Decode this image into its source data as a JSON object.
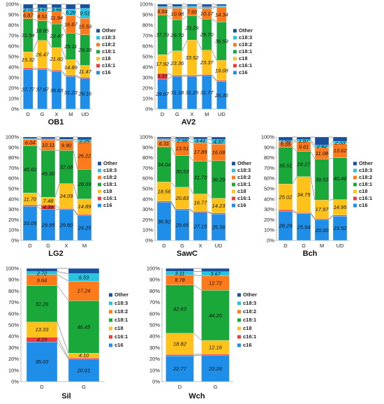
{
  "series_names": [
    "c16",
    "c16:1",
    "c18",
    "c18:1",
    "c18:2",
    "c18:3",
    "Other"
  ],
  "series_colors": [
    "#1f8ee8",
    "#ee3b3b",
    "#ffc21a",
    "#1aa83a",
    "#ff7a1a",
    "#27c3df",
    "#1a4f9e"
  ],
  "chart_data": [
    {
      "type": "bar",
      "stacked": true,
      "title": "OB1",
      "categories": [
        "D",
        "G",
        "X",
        "M",
        "UD"
      ],
      "ylim": [
        0,
        100
      ],
      "yticks": [
        "0%",
        "10%",
        "20%",
        "30%",
        "40%",
        "50%",
        "60%",
        "70%",
        "80%",
        "90%",
        "100%"
      ],
      "legend": "right",
      "series": [
        {
          "name": "c16",
          "values": [
            37.77,
            37.67,
            35.63,
            31.23,
            29.16
          ]
        },
        {
          "name": "c16:1",
          "values": [
            1.5,
            1.3,
            1.4,
            1.0,
            1.0
          ]
        },
        {
          "name": "c18",
          "values": [
            15.32,
            26.47,
            21.6,
            14.89,
            11.47
          ]
        },
        {
          "name": "c18:1",
          "values": [
            31.54,
            18.85,
            22.47,
            25.11,
            29.28
          ]
        },
        {
          "name": "c18:2",
          "values": [
            6.87,
            8.51,
            11.94,
            16.87,
            15.59
          ]
        },
        {
          "name": "c18:3",
          "values": [
            2.7,
            3.57,
            3.56,
            6.2,
            9.51
          ]
        },
        {
          "name": "Other",
          "values": [
            4.3,
            3.63,
            3.4,
            4.7,
            3.99
          ]
        }
      ],
      "labels": [
        {
          "c16": "37.77",
          "c18": "15.32",
          "c18:1": "31.54",
          "c18:2": "6.87",
          "c18:3": "2.70"
        },
        {
          "c16": "37.67",
          "c18": "26.47",
          "c18:1": "18.85",
          "c18:2": "8.51",
          "c18:3": "3.57"
        },
        {
          "c16": "35.63",
          "c18": "21.60",
          "c18:1": "22.47",
          "c18:2": "11.94",
          "c18:3": "3.56"
        },
        {
          "c16": "31.23",
          "c18": "14.89",
          "c18:1": "25.11",
          "c18:2": "16.87",
          "c18:3": "6.20"
        },
        {
          "c16": "29.16",
          "c18": "11.47",
          "c18:1": "29.28",
          "c18:2": "15.59",
          "c18:3": "9.51"
        }
      ]
    },
    {
      "type": "bar",
      "stacked": true,
      "title": "AV2",
      "categories": [
        "D",
        "G",
        "X",
        "M",
        "UD"
      ],
      "ylim": [
        0,
        100
      ],
      "yticks": [
        "0%",
        "10%",
        "20%",
        "30%",
        "40%",
        "50%",
        "60%",
        "70%",
        "80%",
        "90%",
        "100%"
      ],
      "legend": "right",
      "series": [
        {
          "name": "c16",
          "values": [
            28.67,
            31.18,
            31.25,
            31.77,
            26.36
          ]
        },
        {
          "name": "c16:1",
          "values": [
            5.33,
            1.0,
            1.0,
            1.0,
            1.0
          ]
        },
        {
          "name": "c18",
          "values": [
            17.92,
            23.36,
            33.52,
            23.37,
            19.08
          ]
        },
        {
          "name": "c18:1",
          "values": [
            37.79,
            29.7,
            23.29,
            29.7,
            36.59
          ]
        },
        {
          "name": "c18:2",
          "values": [
            6.54,
            10.98,
            7.6,
            10.17,
            14.34
          ]
        },
        {
          "name": "c18:3",
          "values": [
            1.5,
            1.5,
            1.5,
            1.5,
            1.0
          ]
        },
        {
          "name": "Other",
          "values": [
            2.25,
            2.28,
            1.84,
            2.49,
            1.63
          ]
        }
      ],
      "labels": [
        {
          "c16": "28.67",
          "c16:1": "5.33",
          "c18": "17.92",
          "c18:1": "37.79",
          "c18:2": "6.54"
        },
        {
          "c16": "31.18",
          "c18": "23.36",
          "c18:1": "29.70",
          "c18:2": "10.98"
        },
        {
          "c16": "31.25",
          "c18": "33.52",
          "c18:1": "23.29",
          "c18:2": "7.60"
        },
        {
          "c16": "31.77",
          "c18": "23.37",
          "c18:1": "29.70",
          "c18:2": "10.17"
        },
        {
          "c16": "26.36",
          "c18": "19.08",
          "c18:1": "36.59",
          "c18:2": "14.34"
        }
      ]
    },
    {
      "type": "bar",
      "stacked": true,
      "title": "LG2",
      "categories": [
        "D",
        "G",
        "X",
        "M"
      ],
      "ylim": [
        0,
        100
      ],
      "yticks": [
        "0%",
        "10%",
        "20%",
        "30%",
        "40%",
        "50%",
        "60%",
        "70%",
        "80%",
        "90%",
        "100%"
      ],
      "legend": "right",
      "series": [
        {
          "name": "c16",
          "values": [
            33.05,
            29.95,
            29.8,
            24.25
          ]
        },
        {
          "name": "c16:1",
          "values": [
            1.2,
            4.39,
            1.0,
            1.0
          ]
        },
        {
          "name": "c18",
          "values": [
            11.7,
            7.48,
            24.09,
            14.89
          ]
        },
        {
          "name": "c18:1",
          "values": [
            45.62,
            45.3,
            32.08,
            28.69
          ]
        },
        {
          "name": "c18:2",
          "values": [
            6.04,
            10.11,
            9.9,
            26.22
          ]
        },
        {
          "name": "c18:3",
          "values": [
            0.8,
            0.9,
            0.9,
            2.25
          ]
        },
        {
          "name": "Other",
          "values": [
            1.59,
            1.87,
            2.23,
            2.7
          ]
        }
      ],
      "labels": [
        {
          "c16": "33.05",
          "c18": "11.70",
          "c18:1": "45.62",
          "c18:2": "6.04"
        },
        {
          "c16": "29.95",
          "c16:1": "4.39",
          "c18": "7.48",
          "c18:1": "45.30",
          "c18:2": "10.11"
        },
        {
          "c16": "29.80",
          "c18": "24.09",
          "c18:1": "32.08",
          "c18:2": "9.90"
        },
        {
          "c16": "24.25",
          "c18": "14.89",
          "c18:1": "28.69",
          "c18:2": "26.22",
          "c18:3": "2.25"
        }
      ]
    },
    {
      "type": "bar",
      "stacked": true,
      "title": "SawC",
      "categories": [
        "D",
        "G",
        "X",
        "UD"
      ],
      "ylim": [
        0,
        100
      ],
      "yticks": [
        "0%",
        "10%",
        "20%",
        "30%",
        "40%",
        "50%",
        "60%",
        "70%",
        "80%",
        "90%",
        "100%"
      ],
      "legend": "right",
      "series": [
        {
          "name": "c16",
          "values": [
            36.92,
            29.65,
            27.15,
            25.56
          ]
        },
        {
          "name": "c16:1",
          "values": [
            1.0,
            1.0,
            1.0,
            1.0
          ]
        },
        {
          "name": "c18",
          "values": [
            18.56,
            20.83,
            16.77,
            14.23
          ]
        },
        {
          "name": "c18:1",
          "values": [
            34.04,
            30.53,
            31.73,
            36.29
          ]
        },
        {
          "name": "c18:2",
          "values": [
            6.31,
            13.51,
            17.89,
            16.08
          ]
        },
        {
          "name": "c18:3",
          "values": [
            1.4,
            2.59,
            3.41,
            4.37
          ]
        },
        {
          "name": "Other",
          "values": [
            1.77,
            1.89,
            2.05,
            2.47
          ]
        }
      ],
      "labels": [
        {
          "c16": "36.92",
          "c18": "18.56",
          "c18:1": "34.04",
          "c18:2": "6.31"
        },
        {
          "c16": "29.65",
          "c18": "20.83",
          "c18:1": "30.53",
          "c18:2": "13.51",
          "c18:3": "2.59"
        },
        {
          "c16": "27.15",
          "c18": "16.77",
          "c18:1": "31.73",
          "c18:2": "17.89",
          "c18:3": "3.41"
        },
        {
          "c16": "25.56",
          "c18": "14.23",
          "c18:1": "36.29",
          "c18:2": "16.08",
          "c18:3": "4.37"
        }
      ]
    },
    {
      "type": "bar",
      "stacked": true,
      "title": "Bch",
      "categories": [
        "D",
        "G",
        "M",
        "UD"
      ],
      "ylim": [
        0,
        100
      ],
      "yticks": [
        "0%",
        "10%",
        "20%",
        "30%",
        "40%",
        "50%",
        "60%",
        "70%",
        "80%",
        "90%",
        "100%"
      ],
      "legend": "right",
      "series": [
        {
          "name": "c16",
          "values": [
            28.29,
            25.94,
            20.0,
            23.52
          ]
        },
        {
          "name": "c16:1",
          "values": [
            1.2,
            1.0,
            1.0,
            1.0
          ]
        },
        {
          "name": "c18",
          "values": [
            25.02,
            34.75,
            17.97,
            14.95
          ]
        },
        {
          "name": "c18:1",
          "values": [
            35.51,
            24.27,
            39.53,
            40.46
          ]
        },
        {
          "name": "c18:2",
          "values": [
            5.05,
            9.61,
            11.08,
            13.62
          ]
        },
        {
          "name": "c18:3",
          "values": [
            1.58,
            1.87,
            2.42,
            2.33
          ]
        },
        {
          "name": "Other",
          "values": [
            3.35,
            2.56,
            8.0,
            4.12
          ]
        }
      ],
      "labels": [
        {
          "c16": "28.29",
          "c18": "25.02",
          "c18:1": "35.51",
          "c18:2": "5.05",
          "c18:3": "1.58"
        },
        {
          "c16": "25.94",
          "c18": "34.75",
          "c18:1": "24.27",
          "c18:2": "9.61",
          "c18:3": "1.87"
        },
        {
          "c16": "20.00",
          "c18": "17.97",
          "c18:1": "39.53",
          "c18:2": "11.08",
          "c18:3": "2.42"
        },
        {
          "c16": "23.52",
          "c18": "14.95",
          "c18:1": "40.46",
          "c18:2": "13.62",
          "c18:3": "2.33"
        }
      ]
    },
    {
      "type": "bar",
      "stacked": true,
      "title": "Sil",
      "categories": [
        "D",
        "G"
      ],
      "ylim": [
        0,
        100
      ],
      "yticks": [
        "0%",
        "10%",
        "20%",
        "30%",
        "40%",
        "50%",
        "60%",
        "70%",
        "80%",
        "90%",
        "100%"
      ],
      "legend": "right",
      "series": [
        {
          "name": "c16",
          "values": [
            35.03,
            20.01
          ]
        },
        {
          "name": "c16:1",
          "values": [
            4.23,
            1.0
          ]
        },
        {
          "name": "c18",
          "values": [
            13.33,
            4.1
          ]
        },
        {
          "name": "c18:1",
          "values": [
            32.26,
            46.45
          ]
        },
        {
          "name": "c18:2",
          "values": [
            9.64,
            17.24
          ]
        },
        {
          "name": "c18:3",
          "values": [
            2.72,
            6.53
          ]
        },
        {
          "name": "Other",
          "values": [
            2.79,
            4.67
          ]
        }
      ],
      "labels": [
        {
          "c16": "35.03",
          "c16:1": "4.23",
          "c18": "13.33",
          "c18:1": "32.26",
          "c18:2": "9.64",
          "c18:3": "2.72"
        },
        {
          "c16": "20.01",
          "c18": "4.10",
          "c18:1": "46.45",
          "c18:2": "17.24",
          "c18:3": "6.53"
        }
      ]
    },
    {
      "type": "bar",
      "stacked": true,
      "title": "Wch",
      "categories": [
        "D",
        "G"
      ],
      "ylim": [
        0,
        100
      ],
      "yticks": [
        "0%",
        "10%",
        "20%",
        "30%",
        "40%",
        "50%",
        "60%",
        "70%",
        "80%",
        "90%",
        "100%"
      ],
      "legend": "right",
      "series": [
        {
          "name": "c16",
          "values": [
            22.77,
            23.26
          ]
        },
        {
          "name": "c16:1",
          "values": [
            1.2,
            1.0
          ]
        },
        {
          "name": "c18",
          "values": [
            18.82,
            12.16
          ]
        },
        {
          "name": "c18:1",
          "values": [
            42.63,
            44.2
          ]
        },
        {
          "name": "c18:2",
          "values": [
            8.78,
            12.72
          ]
        },
        {
          "name": "c18:3",
          "values": [
            3.11,
            3.67
          ]
        },
        {
          "name": "Other",
          "values": [
            2.69,
            2.99
          ]
        }
      ],
      "labels": [
        {
          "c16": "22.77",
          "c18": "18.82",
          "c18:1": "42.63",
          "c18:2": "8.78",
          "c18:3": "3.11"
        },
        {
          "c16": "23.26",
          "c18": "12.16",
          "c18:1": "44.20",
          "c18:2": "12.72",
          "c18:3": "3.67"
        }
      ]
    }
  ]
}
